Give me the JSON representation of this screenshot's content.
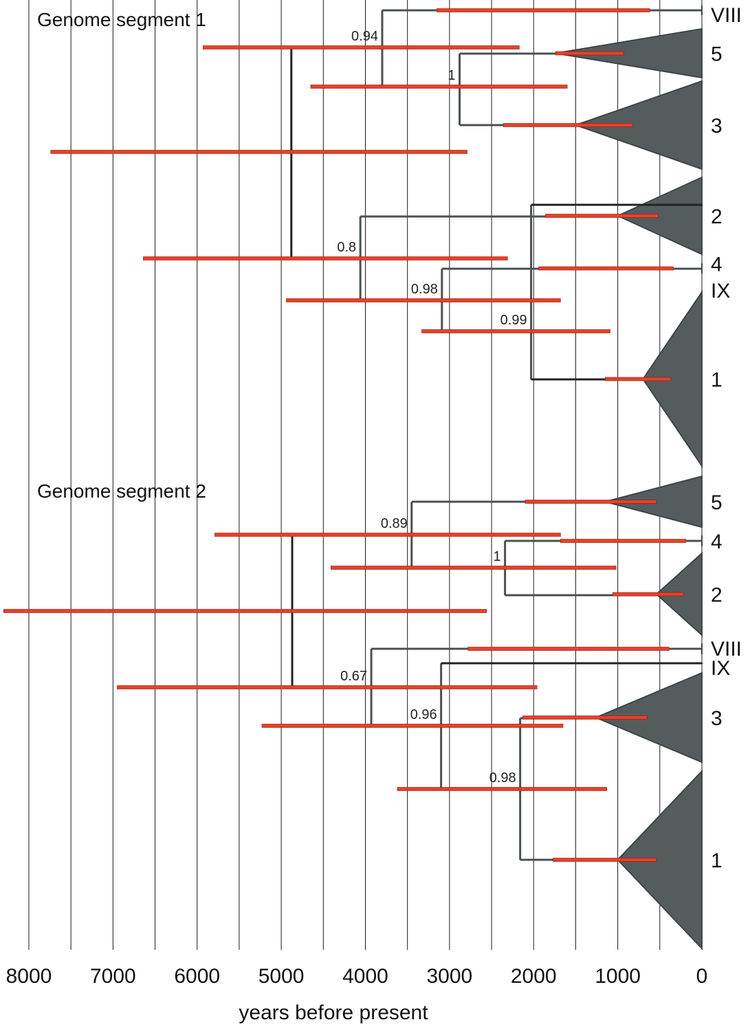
{
  "axis": {
    "label": "years before present",
    "ticks": [
      8000,
      7000,
      6000,
      5000,
      4000,
      3000,
      2000,
      1000,
      0
    ],
    "range": [
      8300,
      0
    ],
    "grid_step": 500
  },
  "colors": {
    "hpd_bar": "#e8402a",
    "hpd_bar_edge": "#8a1c10",
    "clade": "#555c5e",
    "branch": "#4a5050",
    "branch_dark": "#222222",
    "grid": "#1a1a1a"
  },
  "segments": [
    {
      "title": "Genome segment 1",
      "clades": [
        {
          "label": "VIII",
          "node": 0,
          "hpd": [
            620,
            3150
          ],
          "ytop": 8,
          "ybot": 22
        },
        {
          "label": "5",
          "node": 1740,
          "hpd": [
            930,
            1740
          ],
          "ytop": 42,
          "ybot": 113
        },
        {
          "label": "3",
          "node": 1500,
          "hpd": [
            820,
            2360
          ],
          "ytop": 118,
          "ybot": 246
        },
        {
          "label": "2",
          "node": 1000,
          "hpd": [
            520,
            1860
          ],
          "ytop": 258,
          "ybot": 370
        },
        {
          "label": "4",
          "node": 0,
          "hpd": [
            340,
            1940
          ],
          "ytop": 383,
          "ybot": 398
        },
        {
          "label": "IX",
          "node": 0,
          "hpd": null,
          "ytop": 298,
          "ybot": 299
        },
        {
          "label": "1",
          "node": 700,
          "hpd": [
            370,
            1150
          ],
          "ytop": 425,
          "ybot": 678
        }
      ],
      "nodes": [
        {
          "time": 2880,
          "ytop": 78,
          "ybot": 182,
          "hpd": [
            1600,
            4650
          ],
          "posterior": "1",
          "label_y": 126
        },
        {
          "time": 3800,
          "ytop": 15,
          "ybot": 126,
          "hpd": [
            2170,
            5930
          ],
          "posterior": "0.94",
          "label_y": 69
        },
        {
          "time": 2030,
          "ytop": 298,
          "ybot": 552,
          "hpd": [
            1090,
            3330
          ],
          "posterior": "0.99",
          "label_y": 482
        },
        {
          "time": 3090,
          "ytop": 391,
          "ybot": 482,
          "hpd": [
            1680,
            4940
          ],
          "posterior": "0.98",
          "label_y": 437
        },
        {
          "time": 4060,
          "ytop": 315,
          "ybot": 437,
          "hpd": [
            2310,
            6640
          ],
          "posterior": "0.8",
          "label_y": 376
        },
        {
          "time": 4880,
          "ytop": 69,
          "ybot": 376,
          "hpd": [
            2790,
            7740
          ],
          "posterior": "",
          "label_y": 221
        }
      ]
    },
    {
      "title": "Genome segment 2",
      "clades": [
        {
          "label": "5",
          "node": 1150,
          "hpd": [
            540,
            2100
          ],
          "ytop": 693,
          "ybot": 767
        },
        {
          "label": "4",
          "node": 0,
          "hpd": [
            190,
            1680
          ],
          "ytop": 779,
          "ybot": 795
        },
        {
          "label": "2",
          "node": 540,
          "hpd": [
            220,
            1060
          ],
          "ytop": 805,
          "ybot": 924
        },
        {
          "label": "VIII",
          "node": 0,
          "hpd": [
            390,
            2780
          ],
          "ytop": 936,
          "ybot": 952
        },
        {
          "label": "IX",
          "node": 0,
          "hpd": null,
          "ytop": 965,
          "ybot": 966
        },
        {
          "label": "3",
          "node": 1260,
          "hpd": [
            650,
            2130
          ],
          "ytop": 979,
          "ybot": 1109
        },
        {
          "label": "1",
          "node": 1000,
          "hpd": [
            540,
            1770
          ],
          "ytop": 1122,
          "ybot": 1380
        }
      ],
      "nodes": [
        {
          "time": 2340,
          "ytop": 787,
          "ybot": 866,
          "hpd": [
            1020,
            4410
          ],
          "posterior": "1",
          "label_y": 826
        },
        {
          "time": 3450,
          "ytop": 730,
          "ybot": 826,
          "hpd": [
            1680,
            5790
          ],
          "posterior": "0.89",
          "label_y": 778
        },
        {
          "time": 2160,
          "ytop": 1045,
          "ybot": 1251,
          "hpd": [
            1130,
            3620
          ],
          "posterior": "0.98",
          "label_y": 1148
        },
        {
          "time": 3100,
          "ytop": 965,
          "ybot": 1148,
          "hpd": [
            1650,
            5230
          ],
          "posterior": "0.96",
          "label_y": 1056
        },
        {
          "time": 3930,
          "ytop": 944,
          "ybot": 1056,
          "hpd": [
            1960,
            6950
          ],
          "posterior": "0.67",
          "label_y": 1000
        },
        {
          "time": 4870,
          "ytop": 778,
          "ybot": 1000,
          "hpd": [
            2560,
            8300
          ],
          "posterior": "",
          "label_y": 889
        }
      ]
    }
  ]
}
